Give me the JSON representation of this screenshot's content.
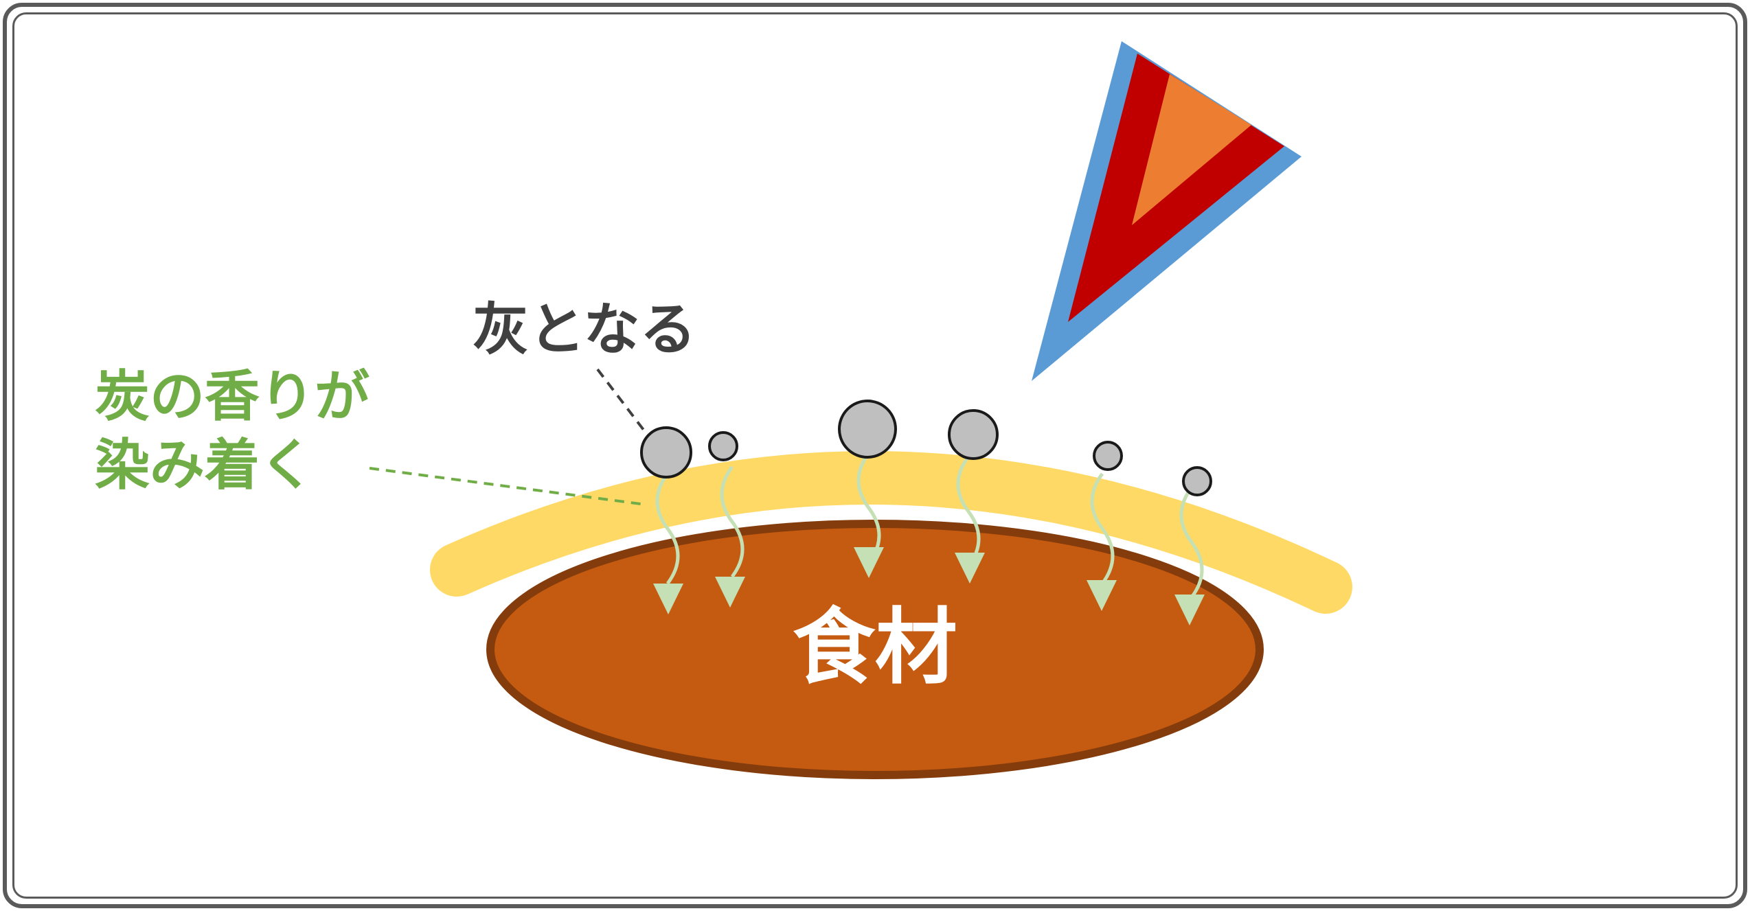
{
  "labels": {
    "ash": "灰となる",
    "aroma_line1": "炭の香りが",
    "aroma_line2": "染み着く",
    "food": "食材"
  },
  "colors": {
    "frame": "#5a5a5a",
    "food_fill": "#c55a11",
    "food_stroke": "#843c0c",
    "glaze_band": "#ffd966",
    "ash_particle": "#bfbfbf",
    "ash_label": "#404040",
    "aroma_text": "#70ad47",
    "aroma_arrow": "#c5e0b4",
    "fan_outer": "#5b9bd5",
    "fan_mid": "#c00000",
    "fan_inner": "#ed7d31"
  }
}
